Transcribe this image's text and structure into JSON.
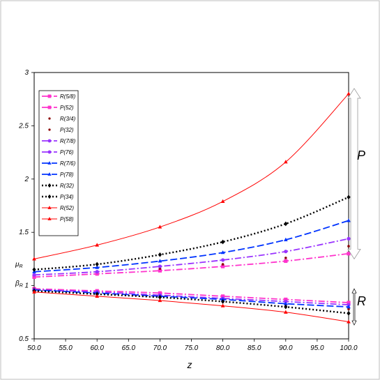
{
  "chart_data": {
    "type": "line",
    "title": "",
    "xlabel": "z",
    "ylabel": "",
    "xlim": [
      50,
      100
    ],
    "ylim": [
      0.5,
      3
    ],
    "grid": false,
    "legend_position": "top-left",
    "x": [
      50,
      60,
      70,
      80,
      90,
      100
    ],
    "x_tick_labels": [
      "50.0",
      "55.0",
      "60.0",
      "65.0",
      "70.0",
      "75.0",
      "80.0",
      "85.0",
      "90.0",
      "95.0",
      "100.0"
    ],
    "y_tick_labels": [
      "0.5",
      "1",
      "1.5",
      "2",
      "2.5",
      "3"
    ],
    "y_annotations": [
      {
        "text": "μR",
        "y": 1.2
      },
      {
        "text": "βR",
        "y": 1.02
      }
    ],
    "group_labels": [
      {
        "text": "P",
        "range": [
          1.25,
          2.85
        ]
      },
      {
        "text": "R",
        "range": [
          0.63,
          0.97
        ]
      }
    ],
    "series": [
      {
        "name": "R(5/8)",
        "color": "#ff33cc",
        "dash": "9,3,2,3",
        "marker": "square",
        "values": [
          0.97,
          0.95,
          0.93,
          0.9,
          0.87,
          0.84
        ]
      },
      {
        "name": "P(52)",
        "color": "#ff33cc",
        "dash": "9,3,2,3",
        "marker": "square",
        "values": [
          1.08,
          1.11,
          1.14,
          1.18,
          1.23,
          1.3
        ]
      },
      {
        "name": "R(3/4)",
        "color": "#8b0000",
        "dash": "none",
        "marker": "dot",
        "values": [
          0.97,
          0.94,
          0.91,
          0.87,
          0.82,
          0.78
        ]
      },
      {
        "name": "P(32)",
        "color": "#8b0000",
        "dash": "none",
        "marker": "dot",
        "values": [
          1.1,
          1.13,
          1.16,
          1.2,
          1.26,
          1.37
        ]
      },
      {
        "name": "R(7/8)",
        "color": "#9933ff",
        "dash": "9,3,2,3",
        "marker": "circle",
        "values": [
          0.96,
          0.94,
          0.91,
          0.88,
          0.85,
          0.82
        ]
      },
      {
        "name": "P(76)",
        "color": "#9933ff",
        "dash": "9,3,2,3",
        "marker": "circle",
        "values": [
          1.1,
          1.13,
          1.18,
          1.24,
          1.32,
          1.44
        ]
      },
      {
        "name": "R(7/6)",
        "color": "#0033ff",
        "dash": "10,4",
        "marker": "triangle",
        "values": [
          0.96,
          0.93,
          0.9,
          0.87,
          0.83,
          0.8
        ]
      },
      {
        "name": "P(78)",
        "color": "#0033ff",
        "dash": "10,4",
        "marker": "triangle",
        "values": [
          1.13,
          1.17,
          1.23,
          1.31,
          1.43,
          1.61
        ]
      },
      {
        "name": "R(32)",
        "color": "#000000",
        "dash": "2,3",
        "marker": "diamond",
        "values": [
          0.95,
          0.92,
          0.89,
          0.85,
          0.8,
          0.74
        ]
      },
      {
        "name": "P(34)",
        "color": "#000000",
        "dash": "2,3",
        "marker": "diamond",
        "values": [
          1.15,
          1.2,
          1.29,
          1.41,
          1.58,
          1.83
        ]
      },
      {
        "name": "R(52)",
        "color": "#ff0000",
        "dash": "none",
        "marker": "triangle",
        "values": [
          0.94,
          0.9,
          0.86,
          0.81,
          0.75,
          0.66
        ]
      },
      {
        "name": "P(58)",
        "color": "#ff0000",
        "dash": "none",
        "marker": "triangle",
        "values": [
          1.25,
          1.38,
          1.55,
          1.79,
          2.16,
          2.8
        ]
      }
    ]
  }
}
